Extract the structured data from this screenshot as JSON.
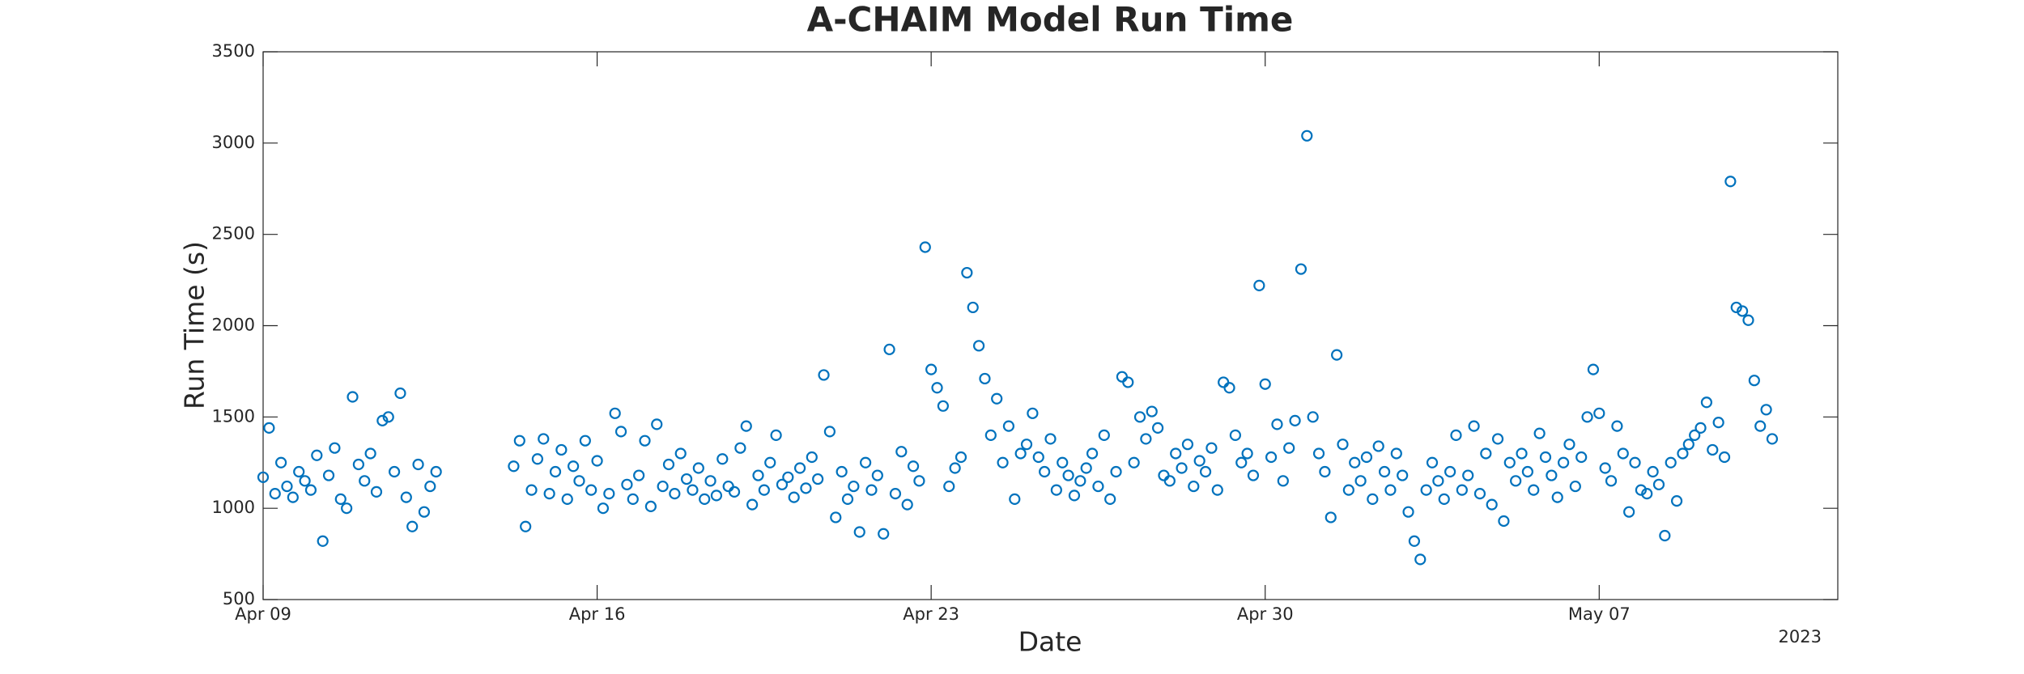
{
  "chart_data": {
    "type": "scatter",
    "title": "A-CHAIM Model Run Time",
    "x_label": "Date",
    "y_label": "Run Time (s)",
    "x_year_label": "2023",
    "xlim": [
      "2023-04-09",
      "2023-05-12"
    ],
    "xticks": [
      {
        "value": "2023-04-09",
        "label": "Apr 09"
      },
      {
        "value": "2023-04-16",
        "label": "Apr 16"
      },
      {
        "value": "2023-04-23",
        "label": "Apr 23"
      },
      {
        "value": "2023-04-30",
        "label": "Apr 30"
      },
      {
        "value": "2023-05-07",
        "label": "May 07"
      }
    ],
    "ylim": [
      500,
      3500
    ],
    "yticks": [
      500,
      1000,
      1500,
      2000,
      2500,
      3000,
      3500
    ],
    "series": [
      {
        "name": "Run Time",
        "color": "#0072bd",
        "x": [
          "2023-04-09T00:00",
          "2023-04-09T03:00",
          "2023-04-09T06:00",
          "2023-04-09T09:00",
          "2023-04-09T12:00",
          "2023-04-09T15:00",
          "2023-04-09T18:00",
          "2023-04-09T21:00",
          "2023-04-10T00:00",
          "2023-04-10T03:00",
          "2023-04-10T06:00",
          "2023-04-10T09:00",
          "2023-04-10T12:00",
          "2023-04-10T15:00",
          "2023-04-10T18:00",
          "2023-04-10T21:00",
          "2023-04-11T00:00",
          "2023-04-11T03:00",
          "2023-04-11T06:00",
          "2023-04-11T09:00",
          "2023-04-11T12:00",
          "2023-04-11T15:00",
          "2023-04-11T18:00",
          "2023-04-11T21:00",
          "2023-04-12T00:00",
          "2023-04-12T03:00",
          "2023-04-12T06:00",
          "2023-04-12T09:00",
          "2023-04-12T12:00",
          "2023-04-12T15:00",
          "2023-04-14T06:00",
          "2023-04-14T09:00",
          "2023-04-14T12:00",
          "2023-04-14T15:00",
          "2023-04-14T18:00",
          "2023-04-14T21:00",
          "2023-04-15T00:00",
          "2023-04-15T03:00",
          "2023-04-15T06:00",
          "2023-04-15T09:00",
          "2023-04-15T12:00",
          "2023-04-15T15:00",
          "2023-04-15T18:00",
          "2023-04-15T21:00",
          "2023-04-16T00:00",
          "2023-04-16T03:00",
          "2023-04-16T06:00",
          "2023-04-16T09:00",
          "2023-04-16T12:00",
          "2023-04-16T15:00",
          "2023-04-16T18:00",
          "2023-04-16T21:00",
          "2023-04-17T00:00",
          "2023-04-17T03:00",
          "2023-04-17T06:00",
          "2023-04-17T09:00",
          "2023-04-17T12:00",
          "2023-04-17T15:00",
          "2023-04-17T18:00",
          "2023-04-17T21:00",
          "2023-04-18T00:00",
          "2023-04-18T03:00",
          "2023-04-18T06:00",
          "2023-04-18T09:00",
          "2023-04-18T12:00",
          "2023-04-18T15:00",
          "2023-04-18T18:00",
          "2023-04-18T21:00",
          "2023-04-19T00:00",
          "2023-04-19T03:00",
          "2023-04-19T06:00",
          "2023-04-19T09:00",
          "2023-04-19T12:00",
          "2023-04-19T15:00",
          "2023-04-19T18:00",
          "2023-04-19T21:00",
          "2023-04-20T00:00",
          "2023-04-20T03:00",
          "2023-04-20T06:00",
          "2023-04-20T09:00",
          "2023-04-20T12:00",
          "2023-04-20T15:00",
          "2023-04-20T18:00",
          "2023-04-20T21:00",
          "2023-04-21T00:00",
          "2023-04-21T03:00",
          "2023-04-21T06:00",
          "2023-04-21T09:00",
          "2023-04-21T12:00",
          "2023-04-21T15:00",
          "2023-04-21T18:00",
          "2023-04-21T21:00",
          "2023-04-22T00:00",
          "2023-04-22T03:00",
          "2023-04-22T06:00",
          "2023-04-22T09:00",
          "2023-04-22T12:00",
          "2023-04-22T15:00",
          "2023-04-22T18:00",
          "2023-04-22T21:00",
          "2023-04-23T00:00",
          "2023-04-23T03:00",
          "2023-04-23T06:00",
          "2023-04-23T09:00",
          "2023-04-23T12:00",
          "2023-04-23T15:00",
          "2023-04-23T18:00",
          "2023-04-23T21:00",
          "2023-04-24T00:00",
          "2023-04-24T03:00",
          "2023-04-24T06:00",
          "2023-04-24T09:00",
          "2023-04-24T12:00",
          "2023-04-24T15:00",
          "2023-04-24T18:00",
          "2023-04-24T21:00",
          "2023-04-25T00:00",
          "2023-04-25T03:00",
          "2023-04-25T06:00",
          "2023-04-25T09:00",
          "2023-04-25T12:00",
          "2023-04-25T15:00",
          "2023-04-25T18:00",
          "2023-04-25T21:00",
          "2023-04-26T00:00",
          "2023-04-26T03:00",
          "2023-04-26T06:00",
          "2023-04-26T09:00",
          "2023-04-26T12:00",
          "2023-04-26T15:00",
          "2023-04-26T18:00",
          "2023-04-26T21:00",
          "2023-04-27T00:00",
          "2023-04-27T03:00",
          "2023-04-27T06:00",
          "2023-04-27T09:00",
          "2023-04-27T12:00",
          "2023-04-27T15:00",
          "2023-04-27T18:00",
          "2023-04-27T21:00",
          "2023-04-28T00:00",
          "2023-04-28T03:00",
          "2023-04-28T06:00",
          "2023-04-28T09:00",
          "2023-04-28T12:00",
          "2023-04-28T15:00",
          "2023-04-28T18:00",
          "2023-04-28T21:00",
          "2023-04-29T00:00",
          "2023-04-29T03:00",
          "2023-04-29T06:00",
          "2023-04-29T09:00",
          "2023-04-29T12:00",
          "2023-04-29T15:00",
          "2023-04-29T18:00",
          "2023-04-29T21:00",
          "2023-04-30T00:00",
          "2023-04-30T03:00",
          "2023-04-30T06:00",
          "2023-04-30T09:00",
          "2023-04-30T12:00",
          "2023-04-30T15:00",
          "2023-04-30T18:00",
          "2023-04-30T21:00",
          "2023-05-01T00:00",
          "2023-05-01T03:00",
          "2023-05-01T06:00",
          "2023-05-01T09:00",
          "2023-05-01T12:00",
          "2023-05-01T15:00",
          "2023-05-01T18:00",
          "2023-05-01T21:00",
          "2023-05-02T00:00",
          "2023-05-02T03:00",
          "2023-05-02T06:00",
          "2023-05-02T09:00",
          "2023-05-02T12:00",
          "2023-05-02T15:00",
          "2023-05-02T18:00",
          "2023-05-02T21:00",
          "2023-05-03T00:00",
          "2023-05-03T03:00",
          "2023-05-03T06:00",
          "2023-05-03T09:00",
          "2023-05-03T12:00",
          "2023-05-03T15:00",
          "2023-05-03T18:00",
          "2023-05-03T21:00",
          "2023-05-04T00:00",
          "2023-05-04T03:00",
          "2023-05-04T06:00",
          "2023-05-04T09:00",
          "2023-05-04T12:00",
          "2023-05-04T15:00",
          "2023-05-04T18:00",
          "2023-05-04T21:00",
          "2023-05-05T00:00",
          "2023-05-05T03:00",
          "2023-05-05T06:00",
          "2023-05-05T09:00",
          "2023-05-05T12:00",
          "2023-05-05T15:00",
          "2023-05-05T18:00",
          "2023-05-05T21:00",
          "2023-05-06T00:00",
          "2023-05-06T03:00",
          "2023-05-06T06:00",
          "2023-05-06T09:00",
          "2023-05-06T12:00",
          "2023-05-06T15:00",
          "2023-05-06T18:00",
          "2023-05-06T21:00",
          "2023-05-07T00:00",
          "2023-05-07T03:00",
          "2023-05-07T06:00",
          "2023-05-07T09:00",
          "2023-05-07T12:00",
          "2023-05-07T15:00",
          "2023-05-07T18:00",
          "2023-05-07T21:00",
          "2023-05-08T00:00",
          "2023-05-08T03:00",
          "2023-05-08T06:00",
          "2023-05-08T09:00",
          "2023-05-08T12:00",
          "2023-05-08T15:00",
          "2023-05-08T18:00",
          "2023-05-08T21:00",
          "2023-05-09T00:00",
          "2023-05-09T03:00",
          "2023-05-09T06:00",
          "2023-05-09T09:00",
          "2023-05-09T12:00",
          "2023-05-09T15:00",
          "2023-05-09T18:00",
          "2023-05-09T21:00",
          "2023-05-10T00:00",
          "2023-05-10T03:00",
          "2023-05-10T06:00",
          "2023-05-10T09:00",
          "2023-05-10T12:00",
          "2023-05-10T15:00"
        ],
        "values": [
          1170,
          1440,
          1080,
          1250,
          1120,
          1060,
          1200,
          1150,
          1100,
          1290,
          820,
          1180,
          1330,
          1050,
          1000,
          1610,
          1240,
          1150,
          1300,
          1090,
          1480,
          1500,
          1200,
          1630,
          1060,
          900,
          1240,
          980,
          1120,
          1200,
          1230,
          1370,
          900,
          1100,
          1270,
          1380,
          1080,
          1200,
          1320,
          1050,
          1230,
          1150,
          1370,
          1100,
          1260,
          1000,
          1080,
          1520,
          1420,
          1130,
          1050,
          1180,
          1370,
          1010,
          1460,
          1120,
          1240,
          1080,
          1300,
          1160,
          1100,
          1220,
          1050,
          1150,
          1070,
          1270,
          1120,
          1090,
          1330,
          1450,
          1020,
          1180,
          1100,
          1250,
          1400,
          1130,
          1170,
          1060,
          1220,
          1110,
          1280,
          1160,
          1730,
          1420,
          950,
          1200,
          1050,
          1120,
          870,
          1250,
          1100,
          1180,
          860,
          1870,
          1080,
          1310,
          1020,
          1230,
          1150,
          2430,
          1760,
          1660,
          1560,
          1120,
          1220,
          1280,
          2290,
          2100,
          1890,
          1710,
          1400,
          1600,
          1250,
          1450,
          1050,
          1300,
          1350,
          1520,
          1280,
          1200,
          1380,
          1100,
          1250,
          1180,
          1070,
          1150,
          1220,
          1300,
          1120,
          1400,
          1050,
          1200,
          1720,
          1690,
          1250,
          1500,
          1380,
          1530,
          1440,
          1180,
          1150,
          1300,
          1220,
          1350,
          1120,
          1260,
          1200,
          1330,
          1100,
          1690,
          1660,
          1400,
          1250,
          1300,
          1180,
          2220,
          1680,
          1280,
          1460,
          1150,
          1330,
          1480,
          2310,
          3040,
          1500,
          1300,
          1200,
          950,
          1840,
          1350,
          1100,
          1250,
          1150,
          1280,
          1050,
          1340,
          1200,
          1100,
          1300,
          1180,
          980,
          820,
          720,
          1100,
          1250,
          1150,
          1050,
          1200,
          1400,
          1100,
          1180,
          1450,
          1080,
          1300,
          1020,
          1380,
          930,
          1250,
          1150,
          1300,
          1200,
          1100,
          1410,
          1280,
          1180,
          1060,
          1250,
          1350,
          1120,
          1280,
          1500,
          1760,
          1520,
          1220,
          1150,
          1450,
          1300,
          980,
          1250,
          1100,
          1080,
          1200,
          1130,
          850,
          1250,
          1040,
          1300,
          1350,
          1400,
          1440,
          1580,
          1320,
          1470,
          1280,
          2790,
          2100,
          2080,
          2030,
          1700,
          1450,
          1540,
          1380
        ]
      }
    ]
  }
}
